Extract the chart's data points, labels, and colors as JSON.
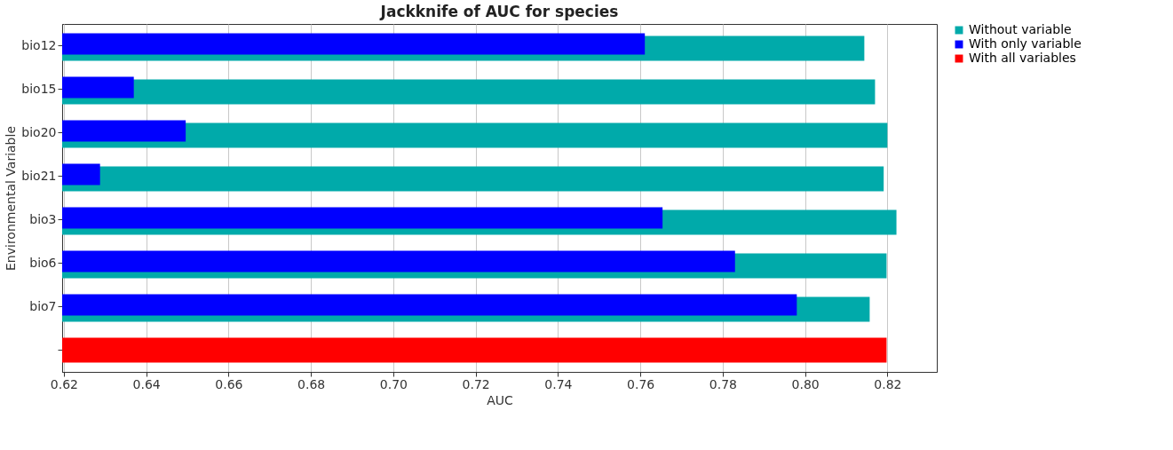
{
  "chart_data": {
    "type": "bar",
    "orientation": "horizontal",
    "title": "Jackknife of AUC for species",
    "xlabel": "AUC",
    "ylabel": "Environmental Variable",
    "categories": [
      "bio12",
      "bio15",
      "bio20",
      "bio21",
      "bio3",
      "bio6",
      "bio7",
      null
    ],
    "series": [
      {
        "name": "Without variable",
        "color": "#00aaaa",
        "values": [
          0.8144,
          0.817,
          0.82,
          0.8191,
          0.8222,
          0.8198,
          0.8157,
          null
        ]
      },
      {
        "name": "With only variable",
        "color": "#0000ff",
        "values": [
          0.7611,
          0.637,
          0.6496,
          0.6288,
          0.7654,
          0.783,
          0.798,
          null
        ]
      },
      {
        "name": "With all variables",
        "color": "#ff0000",
        "values": [
          null,
          null,
          null,
          null,
          null,
          null,
          null,
          0.8198
        ]
      }
    ],
    "xlim": [
      0.6196,
      0.832
    ],
    "xticks": [
      0.62,
      0.64,
      0.66,
      0.68,
      {
        "value": 0.7,
        "label": "0.70"
      },
      0.72,
      0.74,
      0.76,
      0.78,
      {
        "value": 0.8,
        "label": "0.80"
      },
      0.82
    ],
    "grid": "x",
    "legend": "top right"
  }
}
